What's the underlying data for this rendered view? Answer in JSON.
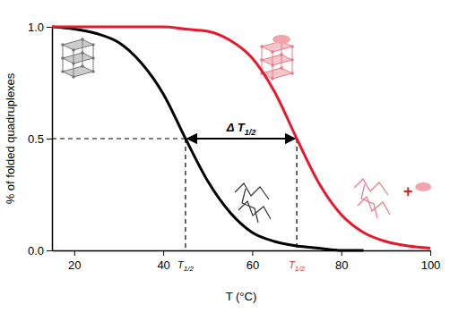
{
  "chart_data": {
    "type": "line",
    "x_label": "T (°C)",
    "y_label": "% of folded quadruplexes",
    "x": [
      15,
      20,
      25,
      30,
      35,
      40,
      45,
      50,
      55,
      60,
      65,
      70,
      75,
      80,
      85,
      90,
      95,
      100
    ],
    "series": [
      {
        "color": "#000000",
        "values": [
          1.0,
          0.99,
          0.97,
          0.93,
          0.84,
          0.7,
          0.5,
          0.31,
          0.17,
          0.08,
          0.04,
          0.02,
          0.01,
          0.0,
          0.0,
          null,
          null,
          null
        ]
      },
      {
        "color": "#e8192c",
        "values": [
          1.0,
          1.0,
          1.0,
          1.0,
          1.0,
          1.0,
          0.99,
          0.98,
          0.94,
          0.86,
          0.71,
          0.5,
          0.3,
          0.16,
          0.08,
          0.04,
          0.02,
          0.01
        ]
      }
    ],
    "xlim": [
      15,
      100
    ],
    "xticks": [
      20,
      40,
      60,
      80,
      100
    ],
    "ylim": [
      0,
      1
    ],
    "yticks": [
      {
        "value": 0,
        "label": "0.0"
      },
      {
        "value": 0.5,
        "label": "0.5"
      },
      {
        "value": 1,
        "label": "1.0"
      }
    ],
    "grid": false,
    "annotations": [
      {
        "text": "T",
        "subscript": "1/2",
        "x": 45,
        "y": 0.5,
        "color": "#000000"
      },
      {
        "text": "T",
        "subscript": "1/2",
        "x": 70,
        "y": 0.5,
        "color": "#e8192c"
      },
      {
        "text": "Δ T",
        "subscript": "1/2",
        "x": [
          45,
          70
        ],
        "y": 0.5,
        "color": "#000000"
      },
      {
        "text": "+",
        "x": 95,
        "y": 0.26,
        "color": "#e8192c"
      }
    ]
  }
}
